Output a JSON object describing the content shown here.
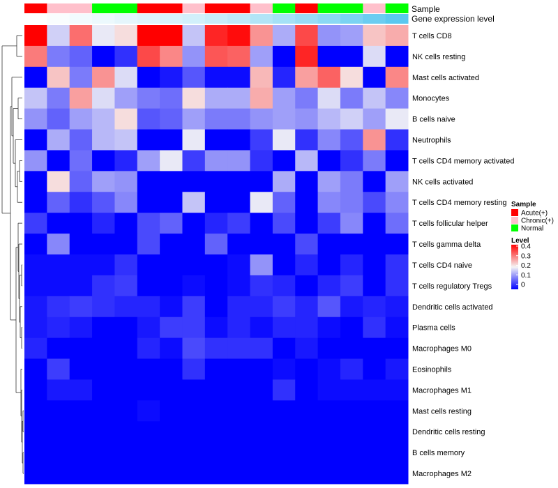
{
  "chart_data": {
    "type": "heatmap",
    "annotation_tracks": [
      "Sample",
      "Gene expression level"
    ],
    "sample_groups": [
      "Acute",
      "Chronic",
      "Chronic",
      "Normal",
      "Normal",
      "Acute",
      "Acute",
      "Chronic",
      "Acute",
      "Acute",
      "Chronic",
      "Normal",
      "Acute",
      "Normal",
      "Normal",
      "Chronic",
      "Normal"
    ],
    "gene_expression_levels": [
      0.01,
      0.03,
      0.05,
      0.07,
      0.09,
      0.11,
      0.13,
      0.15,
      0.18,
      0.21,
      0.25,
      0.29,
      0.33,
      0.37,
      0.42,
      0.47,
      0.52
    ],
    "rows": [
      "T cells CD8",
      "NK cells resting",
      "Mast cells activated",
      "Monocytes",
      "B cells naive",
      "Neutrophils",
      "T cells CD4 memory activated",
      "NK cells activated",
      "T cells CD4 memory resting",
      "T cells follicular helper",
      "T cells gamma delta",
      "T cells CD4 naive",
      "T cells regulatory  Tregs",
      "Dendritic cells activated",
      "Plasma cells",
      "Macrophages M0",
      "Eosinophils",
      "Macrophages M1",
      "Mast cells resting",
      "Dendritic cells resting",
      "B cells memory",
      "Macrophages M2"
    ],
    "values": [
      [
        0.4,
        0.17,
        0.31,
        0.19,
        0.22,
        0.4,
        0.4,
        0.16,
        0.37,
        0.39,
        0.28,
        0.14,
        0.34,
        0.12,
        0.13,
        0.24,
        0.26
      ],
      [
        0.3,
        0.1,
        0.08,
        0.0,
        0.04,
        0.34,
        0.29,
        0.12,
        0.33,
        0.32,
        0.13,
        0.0,
        0.37,
        0.0,
        0.0,
        0.18,
        0.0
      ],
      [
        0.0,
        0.24,
        0.1,
        0.28,
        0.18,
        0.0,
        0.02,
        0.07,
        0.01,
        0.01,
        0.25,
        0.03,
        0.27,
        0.32,
        0.22,
        0.0,
        0.29
      ],
      [
        0.16,
        0.1,
        0.27,
        0.18,
        0.13,
        0.1,
        0.09,
        0.22,
        0.14,
        0.14,
        0.26,
        0.13,
        0.1,
        0.18,
        0.1,
        0.16,
        0.11
      ],
      [
        0.12,
        0.08,
        0.13,
        0.15,
        0.22,
        0.07,
        0.08,
        0.13,
        0.1,
        0.1,
        0.12,
        0.13,
        0.12,
        0.15,
        0.17,
        0.13,
        0.19
      ],
      [
        0.0,
        0.14,
        0.08,
        0.15,
        0.16,
        0.0,
        0.0,
        0.19,
        0.0,
        0.0,
        0.05,
        0.19,
        0.04,
        0.11,
        0.07,
        0.28,
        0.04
      ],
      [
        0.12,
        0.0,
        0.09,
        0.0,
        0.03,
        0.13,
        0.19,
        0.05,
        0.12,
        0.12,
        0.04,
        0.0,
        0.15,
        0.0,
        0.04,
        0.1,
        0.0
      ],
      [
        0.0,
        0.22,
        0.08,
        0.13,
        0.12,
        0.0,
        0.0,
        0.0,
        0.0,
        0.0,
        0.0,
        0.14,
        0.0,
        0.13,
        0.1,
        0.0,
        0.13
      ],
      [
        0.0,
        0.08,
        0.04,
        0.07,
        0.11,
        0.0,
        0.0,
        0.16,
        0.0,
        0.0,
        0.19,
        0.08,
        0.0,
        0.11,
        0.1,
        0.06,
        0.11
      ],
      [
        0.05,
        0.0,
        0.0,
        0.03,
        0.0,
        0.06,
        0.08,
        0.0,
        0.03,
        0.05,
        0.0,
        0.06,
        0.0,
        0.05,
        0.11,
        0.0,
        0.09
      ],
      [
        0.0,
        0.11,
        0.0,
        0.0,
        0.0,
        0.06,
        0.0,
        0.0,
        0.08,
        0.0,
        0.0,
        0.0,
        0.06,
        0.0,
        0.0,
        0.0,
        0.0
      ],
      [
        0.01,
        0.01,
        0.01,
        0.01,
        0.04,
        0.0,
        0.0,
        0.0,
        0.0,
        0.01,
        0.12,
        0.0,
        0.03,
        0.0,
        0.03,
        0.0,
        0.04
      ],
      [
        0.01,
        0.01,
        0.01,
        0.04,
        0.05,
        0.0,
        0.0,
        0.01,
        0.0,
        0.01,
        0.04,
        0.03,
        0.0,
        0.03,
        0.05,
        0.0,
        0.04
      ],
      [
        0.02,
        0.04,
        0.05,
        0.04,
        0.03,
        0.03,
        0.01,
        0.05,
        0.0,
        0.03,
        0.03,
        0.05,
        0.03,
        0.07,
        0.02,
        0.03,
        0.02
      ],
      [
        0.02,
        0.03,
        0.02,
        0.0,
        0.0,
        0.02,
        0.05,
        0.05,
        0.01,
        0.03,
        0.01,
        0.03,
        0.03,
        0.01,
        0.0,
        0.04,
        0.01
      ],
      [
        0.03,
        0.0,
        0.0,
        0.0,
        0.0,
        0.03,
        0.01,
        0.06,
        0.04,
        0.04,
        0.04,
        0.0,
        0.02,
        0.0,
        0.0,
        0.0,
        0.0
      ],
      [
        0.0,
        0.05,
        0.0,
        0.0,
        0.0,
        0.0,
        0.0,
        0.04,
        0.0,
        0.0,
        0.0,
        0.01,
        0.0,
        0.01,
        0.03,
        0.0,
        0.02
      ],
      [
        0.0,
        0.02,
        0.02,
        0.0,
        0.0,
        0.0,
        0.0,
        0.0,
        0.0,
        0.0,
        0.0,
        0.04,
        0.0,
        0.01,
        0.01,
        0.01,
        0.01
      ],
      [
        0.0,
        0.0,
        0.0,
        0.0,
        0.0,
        0.01,
        0.0,
        0.0,
        0.0,
        0.0,
        0.0,
        0.0,
        0.0,
        0.0,
        0.0,
        0.0,
        0.0
      ],
      [
        0.0,
        0.0,
        0.0,
        0.0,
        0.0,
        0.0,
        0.0,
        0.0,
        0.0,
        0.0,
        0.0,
        0.0,
        0.0,
        0.0,
        0.0,
        0.0,
        0.0
      ],
      [
        0.0,
        0.0,
        0.0,
        0.0,
        0.0,
        0.0,
        0.0,
        0.0,
        0.0,
        0.0,
        0.0,
        0.0,
        0.0,
        0.0,
        0.0,
        0.0,
        0.0
      ],
      [
        0.0,
        0.0,
        0.0,
        0.0,
        0.0,
        0.0,
        0.0,
        0.0,
        0.0,
        0.0,
        0.0,
        0.0,
        0.0,
        0.0,
        0.0,
        0.0,
        0.0
      ]
    ],
    "color_scale": {
      "min": 0,
      "mid": 0.2,
      "max": 0.4,
      "low_color": "#0000ff",
      "mid_color": "#f5f5f5",
      "high_color": "#ff0000"
    },
    "legend": {
      "sample_title": "Sample",
      "sample_items": [
        {
          "label": "Acute(+)",
          "color": "#ff0000"
        },
        {
          "label": "Chronic(+)",
          "color": "#ffc0cb"
        },
        {
          "label": "Normal",
          "color": "#00ff00"
        }
      ],
      "level_title": "Level",
      "level_ticks": [
        "0.4",
        "0.3",
        "0.2",
        "0.1",
        "0"
      ],
      "placement": "right"
    },
    "group_colors": {
      "Acute": "#ff0000",
      "Chronic": "#ffc0cb",
      "Normal": "#00ff00"
    },
    "gene_level_colors": {
      "low": "#ffffff",
      "high": "#5bc8ef"
    }
  }
}
